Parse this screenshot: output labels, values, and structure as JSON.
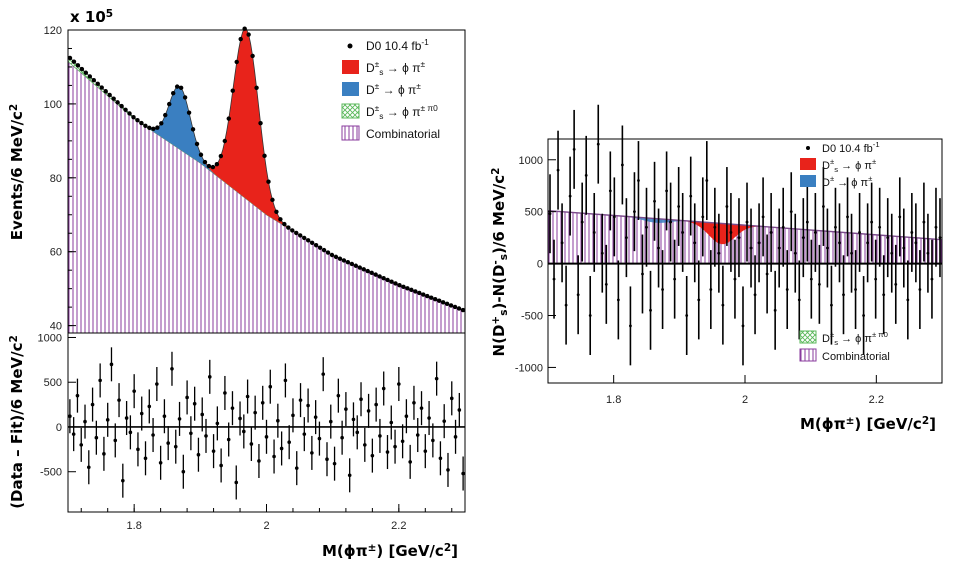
{
  "figure_a": {
    "top": {
      "chart_data": {
        "type": "area",
        "xlim": [
          1.7,
          2.3
        ],
        "ylim": [
          38,
          120
        ],
        "y_multiplier": "x 10",
        "y_multiplier_exp": "5",
        "yticks": [
          40,
          60,
          80,
          100,
          120
        ],
        "ylabel": "Events/6 MeV/c",
        "ylabel_sup": "2",
        "data_series_name": "D0 10.4 fb",
        "data_series_sup": "-1",
        "components": [
          {
            "name_main": "D",
            "name_sub": "s",
            "name_sup": "±",
            "name_rest": " → ϕ π",
            "name_rest_sup": "±",
            "color": "#e8231b",
            "peak": 1.969,
            "amplitude": 46,
            "sigma": 0.019
          },
          {
            "name_main": "D",
            "name_sub": "",
            "name_sup": "±",
            "name_rest": " → ϕ π",
            "name_rest_sup": "±",
            "color": "#3a7fc1",
            "peak": 1.869,
            "amplitude": 17,
            "sigma": 0.016
          },
          {
            "name_main": "D",
            "name_sub": "s",
            "name_sup": "±",
            "name_rest": " → ϕ π",
            "name_rest_sup": "± π0",
            "color": "#5bb85b",
            "hatch": "cross"
          },
          {
            "name_main": "Combinatorial",
            "name_sub": "",
            "name_sup": "",
            "name_rest": "",
            "name_rest_sup": "",
            "color": "#8a3b9e",
            "hatch": "vertical"
          }
        ],
        "background": {
          "x": [
            1.7,
            1.8,
            1.9,
            2.0,
            2.1,
            2.2,
            2.3
          ],
          "y": [
            111.5,
            96,
            84,
            70,
            59,
            51,
            44
          ]
        }
      }
    },
    "bottom": {
      "chart_data": {
        "type": "scatter",
        "xlim": [
          1.7,
          2.3
        ],
        "ylim": [
          -950,
          1050
        ],
        "xticks": [
          1.8,
          2.0,
          2.2
        ],
        "xtick_labels": [
          "1.8",
          "2",
          "2.2"
        ],
        "yticks": [
          -500,
          0,
          500,
          1000
        ],
        "ylabel": "(Data – Fit)/6 MeV/c",
        "ylabel_sup": "2",
        "xlabel": "M(ϕπ",
        "xlabel_sup": "±",
        "xlabel_rest": ") [GeV/c",
        "xlabel_sup2": "2",
        "xlabel_end": "]",
        "residuals": [
          120,
          -80,
          350,
          -200,
          60,
          -450,
          250,
          -120,
          520,
          -300,
          80,
          700,
          -150,
          300,
          -600,
          100,
          -60,
          400,
          -250,
          150,
          -350,
          230,
          -90,
          480,
          -400,
          120,
          -180,
          650,
          -220,
          90,
          -500,
          330,
          -70,
          260,
          -310,
          140,
          -100,
          560,
          -270,
          40,
          -430,
          380,
          -140,
          210,
          -620,
          95,
          -50,
          340,
          -190,
          160,
          -380,
          270,
          -110,
          450,
          -330,
          70,
          -240,
          520,
          -170,
          130,
          -460,
          300,
          -80,
          240,
          -290,
          110,
          -130,
          590,
          -360,
          60,
          -410,
          350,
          -120,
          200,
          -540,
          85,
          -60,
          310,
          -200,
          180,
          -320,
          250,
          -100,
          430,
          -280,
          50,
          -220,
          480,
          -160,
          120,
          -390,
          270,
          -90,
          210,
          -270,
          100,
          -150,
          540,
          -350,
          65,
          -480,
          320,
          -110,
          190,
          -520
        ]
      }
    }
  },
  "figure_b": {
    "chart_data": {
      "type": "scatter",
      "xlim": [
        1.7,
        2.3
      ],
      "ylim": [
        -1150,
        1200
      ],
      "xticks": [
        1.8,
        2.0,
        2.2
      ],
      "xtick_labels": [
        "1.8",
        "2",
        "2.2"
      ],
      "yticks": [
        -1000,
        -500,
        0,
        500,
        1000
      ],
      "ylabel": "N(D",
      "ylabel_sub1": "s",
      "ylabel_sup1": "+",
      "ylabel_mid": ")-N(D",
      "ylabel_sub2": "s",
      "ylabel_sup2": "-",
      "ylabel_end": ")/6 MeV/c",
      "ylabel_sup3": "2",
      "xlabel": "M(ϕπ",
      "xlabel_sup": "±",
      "xlabel_rest": ") [GeV/c",
      "xlabel_sup2": "2",
      "xlabel_end": "]",
      "legend_top": [
        {
          "label": "D0 10.4 fb",
          "sup": "-1",
          "marker": "dot"
        },
        {
          "label": "D",
          "sub": "s",
          "sup": "±",
          "rest": " → ϕ π",
          "rest_sup": "±",
          "color": "#e8231b"
        },
        {
          "label": "D",
          "sub": "",
          "sup": "±",
          "rest": " → ϕ π",
          "rest_sup": "±",
          "color": "#3a7fc1"
        }
      ],
      "legend_bottom": [
        {
          "label": "D",
          "sub": "s",
          "sup": "±",
          "rest": " → ϕ π",
          "rest_sup": "± π0",
          "color": "#5bb85b",
          "hatch": "cross"
        },
        {
          "label": "Combinatorial",
          "color": "#8a3b9e",
          "hatch": "vertical"
        }
      ],
      "background": {
        "x": [
          1.7,
          2.3
        ],
        "y": [
          510,
          230
        ]
      },
      "ds_peak": {
        "center": 1.965,
        "depth": -200,
        "sigma": 0.02
      },
      "points": [
        480,
        -150,
        900,
        200,
        -400,
        650,
        1100,
        -300,
        400,
        850,
        -500,
        300,
        1150,
        100,
        -200,
        700,
        450,
        -350,
        950,
        250,
        -600,
        500,
        800,
        -100,
        350,
        -450,
        600,
        150,
        -250,
        700,
        400,
        -150,
        550,
        300,
        -500,
        650,
        200,
        -350,
        450,
        800,
        -250,
        350,
        100,
        -400,
        550,
        300,
        -150,
        250,
        -600,
        400,
        150,
        -300,
        200,
        450,
        -100,
        300,
        -450,
        150,
        350,
        -250,
        500,
        100,
        -350,
        250,
        400,
        -150,
        300,
        -200,
        550,
        150,
        -400,
        350,
        200,
        -300,
        450,
        100,
        -250,
        300,
        -500,
        200,
        400,
        -150,
        350,
        -300,
        250,
        100,
        -200,
        450,
        150,
        -350,
        300,
        200,
        -250,
        400,
        100,
        -150,
        350,
        250
      ]
    }
  }
}
